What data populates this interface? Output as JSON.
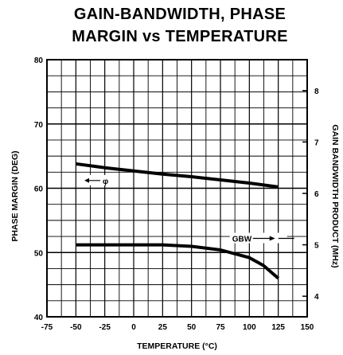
{
  "chart_data": {
    "type": "line",
    "title_line1": "GAIN-BANDWIDTH, PHASE",
    "title_line2": "MARGIN vs TEMPERATURE",
    "xlabel": "TEMPERATURE (°C)",
    "ylabel_left": "PHASE MARGIN (DEG)",
    "ylabel_right": "GAIN BANDWIDTH PRODUCT (MHz)",
    "xlim": [
      -75,
      150
    ],
    "ylim_left": [
      40,
      80
    ],
    "ylim_right": [
      3.6,
      8.6
    ],
    "x_ticks": [
      "-75",
      "-50",
      "-25",
      "0",
      "25",
      "50",
      "75",
      "100",
      "125",
      "150"
    ],
    "y_left_ticks": [
      "40",
      "50",
      "60",
      "70",
      "80"
    ],
    "y_right_ticks": [
      "4",
      "5",
      "6",
      "7",
      "8"
    ],
    "grid": true,
    "series": [
      {
        "name": "φ",
        "axis": "left",
        "x": [
          -50,
          -25,
          0,
          25,
          50,
          75,
          100,
          125
        ],
        "y": [
          63.8,
          63.2,
          62.7,
          62.2,
          61.8,
          61.3,
          60.8,
          60.2
        ]
      },
      {
        "name": "GBW",
        "axis": "right",
        "x": [
          -50,
          -25,
          0,
          25,
          50,
          75,
          100,
          112,
          125
        ],
        "y": [
          5.0,
          5.0,
          5.0,
          5.0,
          4.97,
          4.9,
          4.75,
          4.6,
          4.35
        ]
      }
    ],
    "annotations": [
      {
        "label": "φ",
        "arrow": "left",
        "x": -33,
        "y_left": 61.2
      },
      {
        "label": "GBW",
        "arrow": "right",
        "x": 92,
        "y_left": 52.2
      }
    ]
  }
}
